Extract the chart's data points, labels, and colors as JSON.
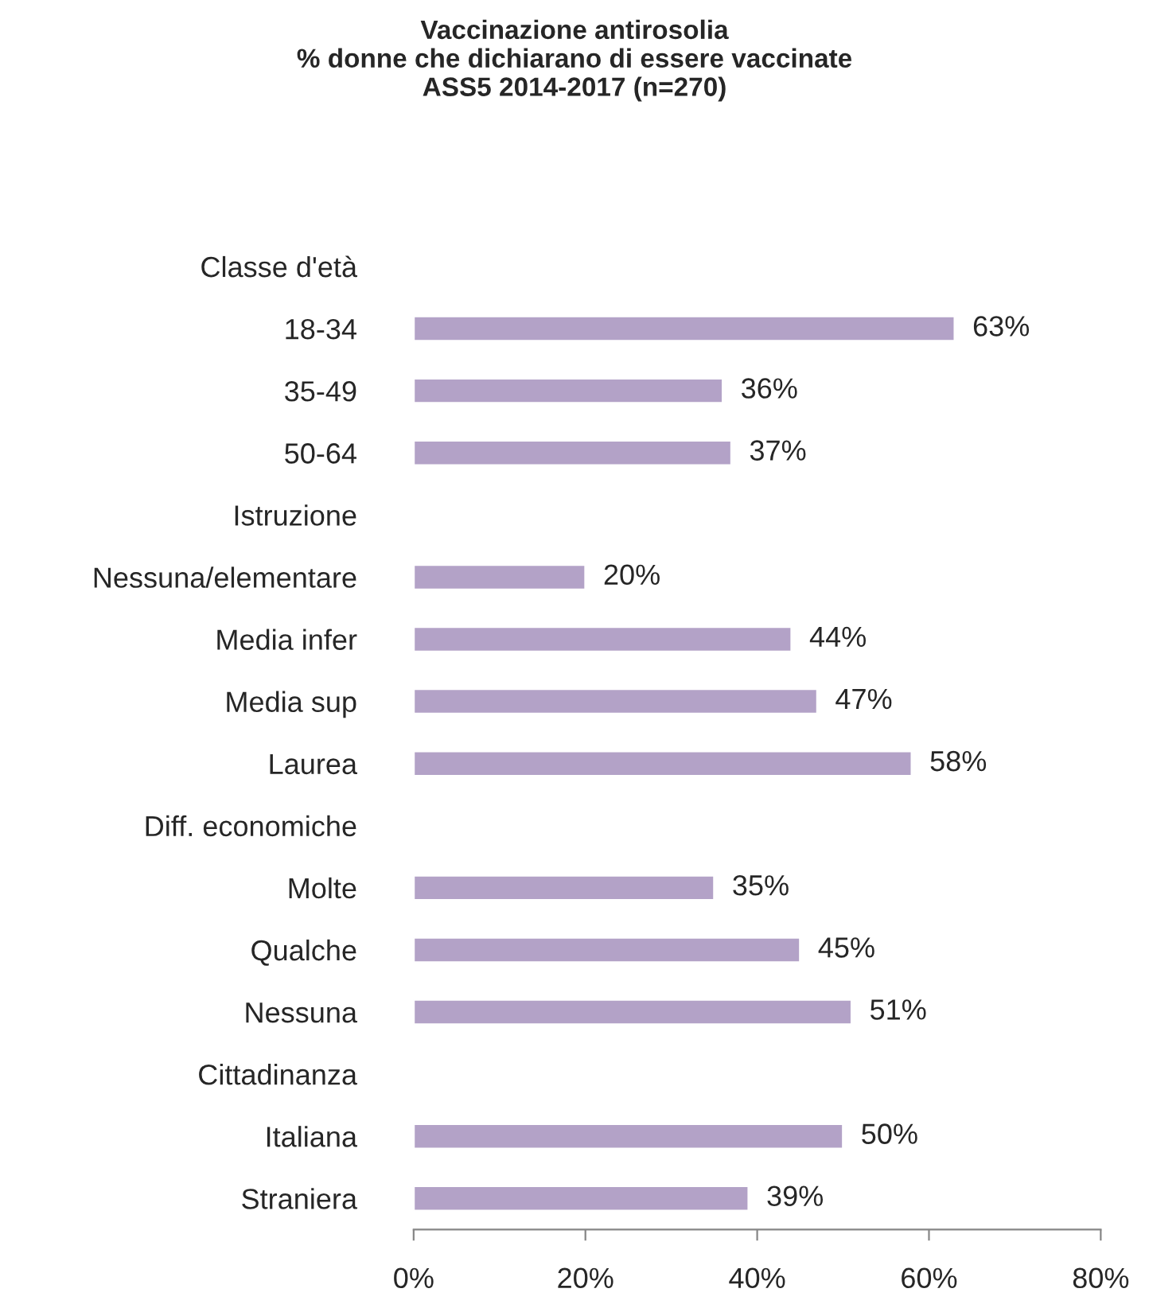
{
  "chart_data": {
    "type": "bar",
    "orientation": "horizontal",
    "title": "Vaccinazione antirosolia\n% donne che dichiarano di essere vaccinate\nASS5 2014-2017 (n=270)",
    "categories": [
      "Classe d'età",
      "18-34",
      "35-49",
      "50-64",
      "Istruzione",
      "Nessuna/elementare",
      "Media infer",
      "Media sup",
      "Laurea",
      "Diff. economiche",
      "Molte",
      "Qualche",
      "Nessuna",
      "Cittadinanza",
      "Italiana",
      "Straniera"
    ],
    "values": [
      null,
      63,
      36,
      37,
      null,
      20,
      44,
      47,
      58,
      null,
      35,
      45,
      51,
      null,
      50,
      39
    ],
    "value_labels": [
      null,
      "63%",
      "36%",
      "37%",
      null,
      "20%",
      "44%",
      "47%",
      "58%",
      null,
      "35%",
      "45%",
      "51%",
      null,
      "50%",
      "39%"
    ],
    "color": "#b3a2c7",
    "xlim": [
      0,
      80
    ],
    "xticks": [
      {
        "value": 0,
        "label": "0%"
      },
      {
        "value": 20,
        "label": "20%"
      },
      {
        "value": 40,
        "label": "40%"
      },
      {
        "value": 60,
        "label": "60%"
      },
      {
        "value": 80,
        "label": "80%"
      }
    ],
    "grid": false,
    "legend": false
  }
}
